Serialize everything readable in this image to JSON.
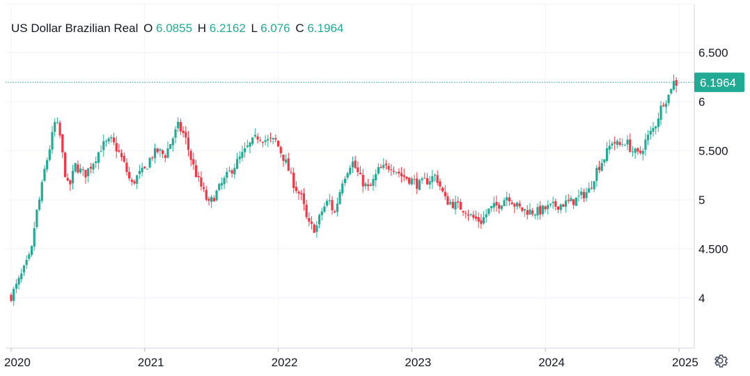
{
  "legend": {
    "symbol": "US Dollar Brazilian Real",
    "o_label": "O",
    "o_value": "6.0855",
    "h_label": "H",
    "h_value": "6.2162",
    "l_label": "L",
    "l_value": "6.076",
    "c_label": "C",
    "c_value": "6.1964"
  },
  "colors": {
    "up": "#22ab94",
    "down": "#f23645",
    "last_price": "#22ab94",
    "grid": "#f0f3fa"
  },
  "icons": {
    "settings": "gear-icon"
  },
  "chart_data": {
    "type": "candlestick",
    "title": "US Dollar Brazilian Real",
    "last_price": 6.1964,
    "ylim": [
      3.5,
      7.0
    ],
    "y_ticks": [
      4,
      4.5,
      5,
      5.5,
      6,
      6.5
    ],
    "y_tick_labels": [
      "4",
      "4.500",
      "5",
      "5.500",
      "6",
      "6.500"
    ],
    "x_range": [
      2020.0,
      2025.0
    ],
    "x_ticks": [
      2020,
      2021,
      2022,
      2023,
      2024,
      2025
    ],
    "x_tick_labels": [
      "2020",
      "2021",
      "2022",
      "2023",
      "2024",
      "2025"
    ],
    "close_path": [
      [
        2020.0,
        4.02
      ],
      [
        2020.05,
        4.15
      ],
      [
        2020.1,
        4.3
      ],
      [
        2020.15,
        4.45
      ],
      [
        2020.18,
        4.8
      ],
      [
        2020.22,
        5.05
      ],
      [
        2020.25,
        5.3
      ],
      [
        2020.3,
        5.6
      ],
      [
        2020.33,
        5.8
      ],
      [
        2020.36,
        5.7
      ],
      [
        2020.4,
        5.3
      ],
      [
        2020.43,
        5.1
      ],
      [
        2020.48,
        5.35
      ],
      [
        2020.55,
        5.25
      ],
      [
        2020.62,
        5.4
      ],
      [
        2020.68,
        5.55
      ],
      [
        2020.75,
        5.6
      ],
      [
        2020.8,
        5.5
      ],
      [
        2020.85,
        5.35
      ],
      [
        2020.9,
        5.15
      ],
      [
        2020.95,
        5.25
      ],
      [
        2021.0,
        5.3
      ],
      [
        2021.05,
        5.45
      ],
      [
        2021.1,
        5.5
      ],
      [
        2021.15,
        5.45
      ],
      [
        2021.2,
        5.6
      ],
      [
        2021.25,
        5.75
      ],
      [
        2021.3,
        5.65
      ],
      [
        2021.35,
        5.4
      ],
      [
        2021.4,
        5.2
      ],
      [
        2021.45,
        5.05
      ],
      [
        2021.48,
        4.95
      ],
      [
        2021.55,
        5.1
      ],
      [
        2021.62,
        5.25
      ],
      [
        2021.7,
        5.4
      ],
      [
        2021.78,
        5.55
      ],
      [
        2021.85,
        5.65
      ],
      [
        2021.92,
        5.6
      ],
      [
        2021.98,
        5.6
      ],
      [
        2022.05,
        5.4
      ],
      [
        2022.12,
        5.15
      ],
      [
        2022.18,
        5.0
      ],
      [
        2022.22,
        4.75
      ],
      [
        2022.28,
        4.7
      ],
      [
        2022.33,
        4.9
      ],
      [
        2022.38,
        5.0
      ],
      [
        2022.42,
        4.85
      ],
      [
        2022.48,
        5.2
      ],
      [
        2022.55,
        5.4
      ],
      [
        2022.62,
        5.2
      ],
      [
        2022.68,
        5.1
      ],
      [
        2022.75,
        5.3
      ],
      [
        2022.85,
        5.35
      ],
      [
        2022.92,
        5.25
      ],
      [
        2023.0,
        5.2
      ],
      [
        2023.05,
        5.15
      ],
      [
        2023.12,
        5.2
      ],
      [
        2023.18,
        5.25
      ],
      [
        2023.25,
        5.0
      ],
      [
        2023.32,
        4.95
      ],
      [
        2023.4,
        4.9
      ],
      [
        2023.45,
        4.82
      ],
      [
        2023.52,
        4.78
      ],
      [
        2023.58,
        4.9
      ],
      [
        2023.65,
        4.95
      ],
      [
        2023.72,
        5.05
      ],
      [
        2023.77,
        4.95
      ],
      [
        2023.82,
        4.9
      ],
      [
        2023.9,
        4.88
      ],
      [
        2023.95,
        4.88
      ],
      [
        2024.02,
        4.92
      ],
      [
        2024.1,
        4.95
      ],
      [
        2024.2,
        4.98
      ],
      [
        2024.28,
        5.05
      ],
      [
        2024.33,
        5.1
      ],
      [
        2024.38,
        5.3
      ],
      [
        2024.45,
        5.45
      ],
      [
        2024.5,
        5.6
      ],
      [
        2024.55,
        5.55
      ],
      [
        2024.6,
        5.6
      ],
      [
        2024.65,
        5.5
      ],
      [
        2024.7,
        5.45
      ],
      [
        2024.75,
        5.6
      ],
      [
        2024.82,
        5.75
      ],
      [
        2024.88,
        6.0
      ],
      [
        2024.92,
        6.05
      ],
      [
        2024.95,
        6.2
      ],
      [
        2024.98,
        6.19
      ]
    ],
    "candles_per_year": 52
  }
}
